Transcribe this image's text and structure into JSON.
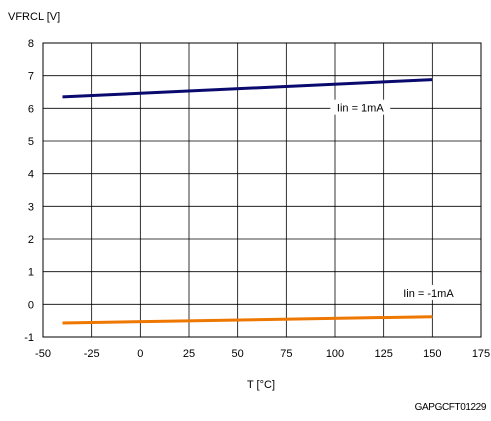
{
  "chart_data": {
    "type": "line",
    "title": "",
    "ylabel": "VFRCL [V]",
    "xlabel": "T [°C]",
    "xlim": [
      -50,
      175
    ],
    "ylim": [
      -1,
      8
    ],
    "x_ticks": [
      -50,
      -25,
      0,
      25,
      50,
      75,
      100,
      125,
      150,
      175
    ],
    "y_ticks": [
      -1,
      0,
      1,
      2,
      3,
      4,
      5,
      6,
      7,
      8
    ],
    "grid": true,
    "series": [
      {
        "name": "Iin = 1mA",
        "color": "#0a0a6e",
        "x": [
          -40,
          150
        ],
        "y": [
          6.35,
          6.88
        ]
      },
      {
        "name": "Iin = -1mA",
        "color": "#ee7700",
        "x": [
          -40,
          150
        ],
        "y": [
          -0.57,
          -0.38
        ]
      }
    ],
    "annotations": [
      {
        "text": "Iin = 1mA",
        "x": 113,
        "y": 6.02
      },
      {
        "text": "Iin = -1mA",
        "x": 148,
        "y": 0.35
      }
    ],
    "footer": "GAPGCFT01229"
  }
}
